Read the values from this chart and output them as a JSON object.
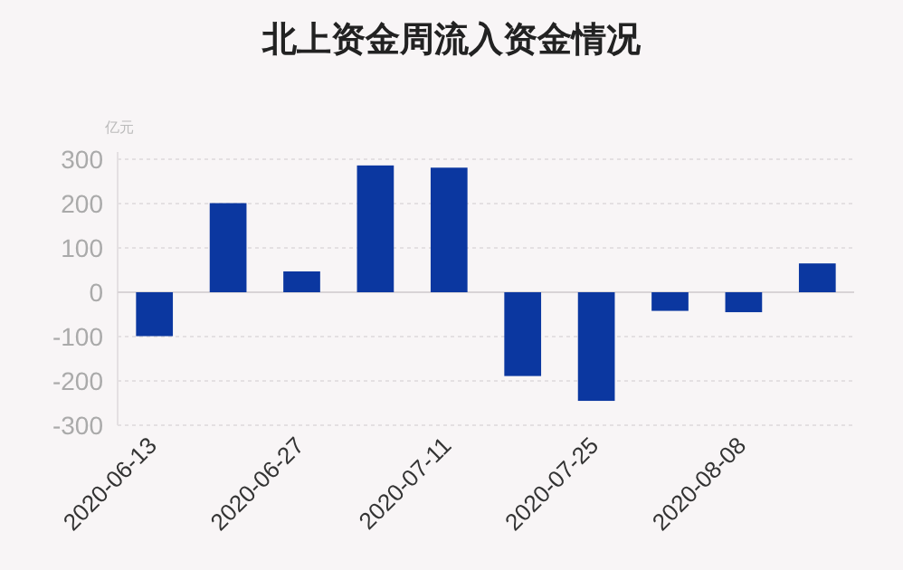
{
  "chart_data": {
    "type": "bar",
    "title": "北上资金周流入资金情况",
    "ylabel": "亿元",
    "categories": [
      "2020-06-13",
      null,
      "2020-06-27",
      null,
      "2020-07-11",
      null,
      "2020-07-25",
      null,
      "2020-08-08",
      null
    ],
    "values": [
      -99,
      201,
      47,
      286,
      281,
      -189,
      -245,
      -42,
      -45,
      65
    ],
    "color": "#0b37a0",
    "ylim": [
      -300,
      300
    ],
    "yticks": [
      -300,
      -200,
      -100,
      0,
      100,
      200,
      300
    ],
    "grid": "y"
  }
}
